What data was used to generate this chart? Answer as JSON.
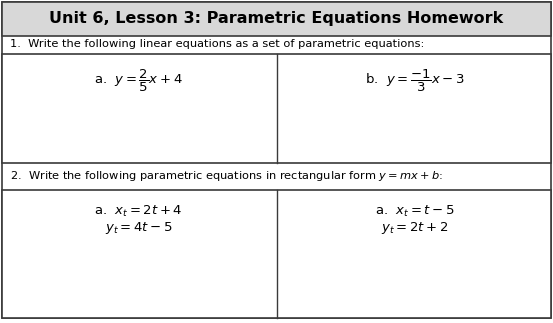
{
  "title": "Unit 6, Lesson 3: Parametric Equations Homework",
  "q1_label": "1.  Write the following linear equations as a set of parametric equations:",
  "q2_label": "2.  Write the following parametric equations in rectangular form $y = mx + b$:",
  "cell1a_text": "a.  $y = \\dfrac{2}{5}x + 4$",
  "cell1b_text": "b.  $y = \\dfrac{-1}{3}x - 3$",
  "cell2a_line1": "a.  $x_t = 2t + 4$",
  "cell2a_line2": "$y_t = 4t - 5$",
  "cell2b_line1": "a.  $x_t = t - 5$",
  "cell2b_line2": "$y_t = 2t + 2$",
  "bg_color": "#ffffff",
  "border_color": "#3a3a3a",
  "title_bg": "#d8d8d8",
  "font_color": "#000000",
  "title_fontsize": 11.5,
  "label_fontsize": 8.2,
  "cell1_fontsize": 9.5,
  "cell2_fontsize": 9.5
}
